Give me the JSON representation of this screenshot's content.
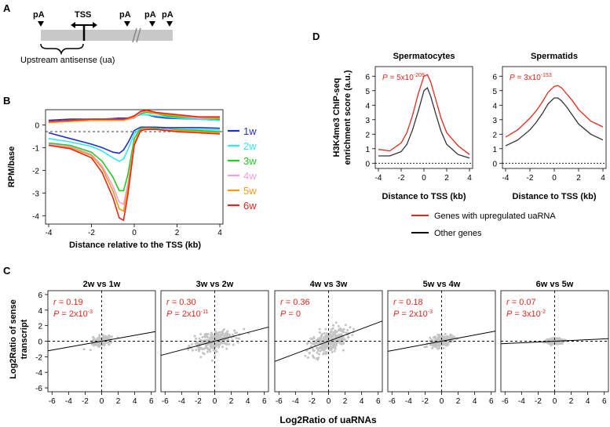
{
  "panels": {
    "A": {
      "letter": "A",
      "labels": {
        "pa": "pA",
        "tss": "TSS",
        "ua": "Upstream antisense (ua)"
      }
    },
    "B": {
      "letter": "B",
      "ylabel": "RPM/base",
      "xlabel": "Distance relative to the TSS (kb)",
      "xticks": [
        "-4",
        "-2",
        "0",
        "2",
        "4"
      ],
      "yticks": [
        "0",
        "-1",
        "-2",
        "-3",
        "-4"
      ],
      "legend": [
        {
          "label": "1w",
          "color": "#1f2fd6"
        },
        {
          "label": "2w",
          "color": "#2ee8f5"
        },
        {
          "label": "3w",
          "color": "#22cc22"
        },
        {
          "label": "4w",
          "color": "#f59ee0"
        },
        {
          "label": "5w",
          "color": "#f39a10"
        },
        {
          "label": "6w",
          "color": "#e8261a"
        }
      ]
    },
    "C": {
      "letter": "C",
      "ylabel_line1": "Log2Ratio of sense",
      "ylabel_line2": "transcript",
      "xlabel": "Log2Ratio of uaRNAs",
      "xticks": [
        "-6",
        "-4",
        "-2",
        "0",
        "2",
        "4",
        "6"
      ],
      "yticks": [
        "6",
        "4",
        "2",
        "0",
        "-2",
        "-4",
        "-6"
      ],
      "subplots": [
        {
          "title": "2w vs 1w",
          "r": "r = 0.19",
          "p_main": "P = 2x10",
          "p_exp": "-3"
        },
        {
          "title": "3w vs 2w",
          "r": "r = 0.30",
          "p_main": "P = 2x10",
          "p_exp": "-11"
        },
        {
          "title": "4w vs 3w",
          "r": "r = 0.36",
          "p_main": "P = 0",
          "p_exp": ""
        },
        {
          "title": "5w vs 4w",
          "r": "r = 0.18",
          "p_main": "P = 2x10",
          "p_exp": "-3"
        },
        {
          "title": "6w vs 5w",
          "r": "r = 0.07",
          "p_main": "P = 3x10",
          "p_exp": "-2"
        }
      ]
    },
    "D": {
      "letter": "D",
      "ylabel_line1": "H3K4me3 ChIP-seq",
      "ylabel_line2": "enrichment score (a.u.)",
      "xlabel": "Distance to TSS (kb)",
      "xticks": [
        "-4",
        "-2",
        "0",
        "2",
        "4"
      ],
      "yticks": [
        "0",
        "1",
        "2",
        "3",
        "4",
        "5",
        "6"
      ],
      "subplots": [
        {
          "title": "Spermatocytes",
          "p_main": "P = 5x10",
          "p_exp": "-209"
        },
        {
          "title": "Spermatids",
          "p_main": "P = 3x10",
          "p_exp": "-153"
        }
      ],
      "legend": [
        {
          "label": "Genes with upregulated uaRNA",
          "color": "#e8261a"
        },
        {
          "label": "Other genes",
          "color": "#000000"
        }
      ]
    }
  },
  "chart_data": [
    {
      "type": "line",
      "panel": "B",
      "xlabel": "Distance relative to the TSS (kb)",
      "ylabel": "RPM/base",
      "xlim": [
        -4,
        4
      ],
      "ylim": [
        -4.3,
        0.6
      ],
      "x": [
        -4,
        -3,
        -2,
        -1.5,
        -1,
        -0.7,
        -0.5,
        -0.3,
        0,
        0.3,
        0.6,
        1,
        1.5,
        2,
        3,
        4
      ],
      "series": [
        {
          "name": "1w",
          "sense": [
            0.2,
            0.25,
            0.25,
            0.25,
            0.28,
            0.3,
            0.3,
            0.3,
            0.35,
            0.45,
            0.45,
            0.35,
            0.3,
            0.28,
            0.25,
            0.2
          ],
          "antisense": [
            -0.35,
            -0.6,
            -0.85,
            -1.0,
            -1.2,
            -1.25,
            -1.1,
            -0.8,
            -0.25,
            -0.1,
            -0.1,
            -0.1,
            -0.12,
            -0.12,
            -0.12,
            -0.15
          ]
        },
        {
          "name": "2w",
          "sense": [
            0.15,
            0.2,
            0.25,
            0.25,
            0.25,
            0.25,
            0.25,
            0.3,
            0.35,
            0.45,
            0.45,
            0.4,
            0.35,
            0.3,
            0.25,
            0.2
          ],
          "antisense": [
            -0.6,
            -0.75,
            -0.95,
            -1.15,
            -1.45,
            -1.6,
            -1.5,
            -1.1,
            -0.4,
            -0.15,
            -0.15,
            -0.15,
            -0.18,
            -0.2,
            -0.2,
            -0.22
          ]
        },
        {
          "name": "3w",
          "sense": [
            0.1,
            0.15,
            0.2,
            0.2,
            0.2,
            0.2,
            0.2,
            0.25,
            0.3,
            0.5,
            0.55,
            0.5,
            0.4,
            0.35,
            0.3,
            0.25
          ],
          "antisense": [
            -0.8,
            -0.9,
            -1.2,
            -1.6,
            -2.3,
            -2.9,
            -2.9,
            -2.2,
            -0.6,
            -0.15,
            -0.15,
            -0.15,
            -0.18,
            -0.2,
            -0.25,
            -0.3
          ]
        },
        {
          "name": "4w",
          "sense": [
            0.1,
            0.15,
            0.2,
            0.2,
            0.2,
            0.2,
            0.2,
            0.25,
            0.3,
            0.55,
            0.6,
            0.55,
            0.45,
            0.4,
            0.3,
            0.3
          ],
          "antisense": [
            -0.85,
            -0.95,
            -1.3,
            -1.8,
            -2.7,
            -3.4,
            -3.5,
            -2.6,
            -0.8,
            -0.2,
            -0.15,
            -0.2,
            -0.2,
            -0.25,
            -0.3,
            -0.35
          ]
        },
        {
          "name": "5w",
          "sense": [
            0.1,
            0.15,
            0.2,
            0.2,
            0.2,
            0.2,
            0.2,
            0.25,
            0.35,
            0.6,
            0.6,
            0.5,
            0.45,
            0.4,
            0.35,
            0.3
          ],
          "antisense": [
            -0.9,
            -1.0,
            -1.35,
            -1.9,
            -2.9,
            -3.7,
            -3.8,
            -2.8,
            -0.8,
            -0.2,
            -0.15,
            -0.2,
            -0.25,
            -0.25,
            -0.3,
            -0.35
          ]
        },
        {
          "name": "6w",
          "sense": [
            0.15,
            0.2,
            0.25,
            0.25,
            0.25,
            0.25,
            0.25,
            0.3,
            0.4,
            0.6,
            0.65,
            0.55,
            0.5,
            0.45,
            0.35,
            0.35
          ],
          "antisense": [
            -0.9,
            -1.05,
            -1.45,
            -2.1,
            -3.2,
            -4.1,
            -4.2,
            -3.1,
            -0.9,
            -0.25,
            -0.2,
            -0.2,
            -0.25,
            -0.3,
            -0.35,
            -0.4
          ]
        }
      ]
    },
    {
      "type": "line",
      "panel": "D",
      "title": "Spermatocytes",
      "xlabel": "Distance to TSS (kb)",
      "xlim": [
        -4,
        4
      ],
      "ylim": [
        -0.2,
        6.5
      ],
      "x": [
        -4,
        -3,
        -2,
        -1.5,
        -1,
        -0.5,
        0,
        0.3,
        0.6,
        1,
        1.5,
        2,
        3,
        4
      ],
      "series": [
        {
          "name": "Genes with upregulated uaRNA",
          "values": [
            0.95,
            0.85,
            1.4,
            2.1,
            3.3,
            4.8,
            6.0,
            6.1,
            5.6,
            4.5,
            3.1,
            2.1,
            1.2,
            0.6
          ]
        },
        {
          "name": "Other genes",
          "values": [
            0.5,
            0.5,
            0.8,
            1.3,
            2.3,
            3.6,
            5.0,
            5.2,
            4.6,
            3.5,
            2.2,
            1.3,
            0.6,
            0.35
          ]
        }
      ]
    },
    {
      "type": "line",
      "panel": "D",
      "title": "Spermatids",
      "xlabel": "Distance to TSS (kb)",
      "xlim": [
        -4,
        4
      ],
      "ylim": [
        -0.2,
        6.5
      ],
      "x": [
        -4,
        -3,
        -2,
        -1.5,
        -1,
        -0.5,
        0,
        0.3,
        0.6,
        1,
        1.5,
        2,
        3,
        4
      ],
      "series": [
        {
          "name": "Genes with upregulated uaRNA",
          "values": [
            1.8,
            2.3,
            3.1,
            3.6,
            4.2,
            4.9,
            5.3,
            5.35,
            5.2,
            4.8,
            4.3,
            3.7,
            2.9,
            2.5
          ]
        },
        {
          "name": "Other genes",
          "values": [
            1.2,
            1.6,
            2.3,
            2.8,
            3.4,
            4.1,
            4.5,
            4.5,
            4.3,
            3.9,
            3.3,
            2.7,
            2.0,
            1.6
          ]
        }
      ]
    },
    {
      "type": "scatter",
      "panel": "C",
      "xlabel": "Log2Ratio of uaRNAs",
      "ylabel": "Log2Ratio of sense transcript",
      "xlim": [
        -6.5,
        6.5
      ],
      "ylim": [
        -6.5,
        6.5
      ],
      "subplots": [
        {
          "title": "2w vs 1w",
          "slope": 0.19,
          "spread_x": 1.0,
          "spread_y": 0.5
        },
        {
          "title": "3w vs 2w",
          "slope": 0.28,
          "spread_x": 2.6,
          "spread_y": 1.2
        },
        {
          "title": "4w vs 3w",
          "slope": 0.4,
          "spread_x": 2.3,
          "spread_y": 1.4
        },
        {
          "title": "5w vs 4w",
          "slope": 0.2,
          "spread_x": 1.4,
          "spread_y": 0.6
        },
        {
          "title": "6w vs 5w",
          "slope": 0.05,
          "spread_x": 1.0,
          "spread_y": 0.35
        }
      ]
    }
  ]
}
